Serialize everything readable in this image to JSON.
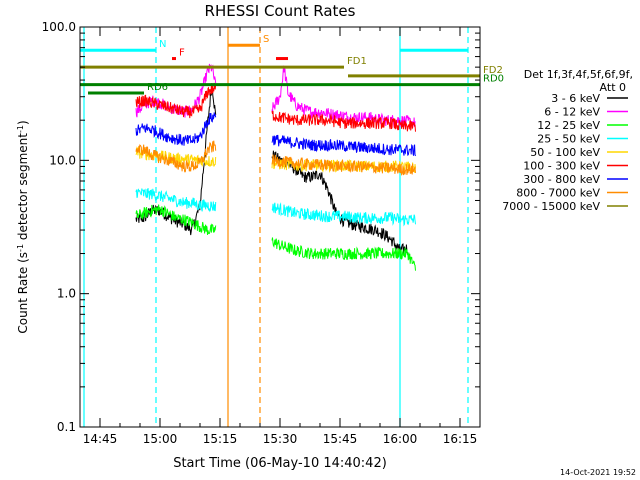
{
  "chart_data": {
    "type": "line",
    "title": "RHESSI Count Rates",
    "xlabel": "Start Time (06-May-10 14:40:42)",
    "ylabel": "Count Rate (s⁻¹ detector segment⁻¹)",
    "ylabel_main": "Count Rate (s",
    "ylabel_sup1": "-1",
    "ylabel_mid": " detector segment",
    "ylabel_sup2": "-1",
    "ylabel_end": ")",
    "yscale": "log",
    "xlim": [
      "14:40",
      "16:20"
    ],
    "ylim": [
      0.1,
      100.0
    ],
    "x_ticks": [
      "14:45",
      "15:00",
      "15:15",
      "15:30",
      "15:45",
      "16:00",
      "16:15"
    ],
    "y_ticks": [
      "0.1",
      "1.0",
      "10.0",
      "100.0"
    ],
    "legend_header": [
      "Det 1f,3f,4f,5f,6f,9f,",
      "Att 0"
    ],
    "footer_date": "14-Oct-2021 19:52",
    "series": [
      {
        "name": "3 - 6 keV",
        "color": "#000000",
        "segments": [
          {
            "x": [
              "14:54",
              "14:56",
              "14:58",
              "15:00",
              "15:02",
              "15:04",
              "15:06",
              "15:08",
              "15:10",
              "15:12",
              "15:13",
              "15:14"
            ],
            "y": [
              3.6,
              3.7,
              4.2,
              4.2,
              3.8,
              3.5,
              3.3,
              3.0,
              4.6,
              20.0,
              38.0,
              20.0
            ]
          },
          {
            "x": [
              "15:28",
              "15:30",
              "15:32",
              "15:34",
              "15:36",
              "15:38",
              "15:40",
              "15:42",
              "15:44",
              "15:46",
              "15:48",
              "15:50",
              "15:52",
              "15:54",
              "15:56",
              "15:58",
              "16:00",
              "16:02"
            ],
            "y": [
              11.0,
              10.0,
              9.5,
              8.5,
              7.5,
              7.5,
              8.0,
              6.0,
              4.0,
              3.5,
              3.3,
              3.2,
              3.1,
              3.0,
              2.8,
              2.5,
              2.1,
              2.2
            ]
          }
        ]
      },
      {
        "name": "6 - 12 keV",
        "color": "#ff00ff",
        "segments": [
          {
            "x": [
              "14:54",
              "14:56",
              "14:58",
              "15:00",
              "15:02",
              "15:04",
              "15:06",
              "15:08",
              "15:10",
              "15:12",
              "15:13",
              "15:14"
            ],
            "y": [
              23,
              26,
              28,
              27,
              25,
              24,
              23,
              24,
              30,
              47,
              50,
              35
            ]
          },
          {
            "x": [
              "15:28",
              "15:30",
              "15:31",
              "15:32",
              "15:34",
              "15:36",
              "15:38",
              "15:40",
              "15:44",
              "15:48",
              "15:52",
              "15:56",
              "16:00",
              "16:04"
            ],
            "y": [
              24,
              30,
              50,
              32,
              26,
              24,
              23,
              23,
              22,
              21,
              21,
              20,
              20,
              19
            ]
          }
        ]
      },
      {
        "name": "12 - 25 keV",
        "color": "#00ff00",
        "segments": [
          {
            "x": [
              "14:54",
              "14:56",
              "14:58",
              "15:00",
              "15:02",
              "15:04",
              "15:06",
              "15:08",
              "15:10",
              "15:12",
              "15:14"
            ],
            "y": [
              3.8,
              4.0,
              4.2,
              4.3,
              4.0,
              3.7,
              3.6,
              3.4,
              3.2,
              3.0,
              3.0
            ]
          },
          {
            "x": [
              "15:28",
              "15:30",
              "15:34",
              "15:38",
              "15:42",
              "15:46",
              "15:50",
              "15:54",
              "15:58",
              "16:00",
              "16:02",
              "16:04"
            ],
            "y": [
              2.5,
              2.3,
              2.1,
              2.0,
              2.0,
              2.0,
              2.0,
              2.0,
              2.0,
              2.0,
              2.0,
              1.5
            ]
          }
        ]
      },
      {
        "name": "25 - 50 keV",
        "color": "#00ffff",
        "segments": [
          {
            "x": [
              "14:54",
              "14:56",
              "14:58",
              "15:00",
              "15:02",
              "15:04",
              "15:06",
              "15:08",
              "15:10",
              "15:12",
              "15:14"
            ],
            "y": [
              5.8,
              5.6,
              5.6,
              5.4,
              5.2,
              5.0,
              4.8,
              4.8,
              4.6,
              4.6,
              4.5
            ]
          },
          {
            "x": [
              "15:28",
              "15:30",
              "15:34",
              "15:38",
              "15:42",
              "15:46",
              "15:50",
              "15:54",
              "15:58",
              "16:00",
              "16:02",
              "16:04"
            ],
            "y": [
              4.5,
              4.3,
              4.0,
              3.9,
              3.8,
              3.8,
              3.7,
              3.7,
              3.7,
              3.6,
              3.6,
              3.6
            ]
          }
        ]
      },
      {
        "name": "50 - 100 keV",
        "color": "#ffd700",
        "segments": [
          {
            "x": [
              "14:54",
              "14:58",
              "15:02",
              "15:06",
              "15:10",
              "15:14"
            ],
            "y": [
              11.5,
              11.0,
              10.5,
              10.2,
              10.0,
              9.8
            ]
          },
          {
            "x": [
              "15:28",
              "15:34",
              "15:40",
              "15:46",
              "15:52",
              "15:58",
              "16:04"
            ],
            "y": [
              9.5,
              9.2,
              9.2,
              9.1,
              9.0,
              9.0,
              8.8
            ]
          }
        ]
      },
      {
        "name": "100 - 300 keV",
        "color": "#ff0000",
        "segments": [
          {
            "x": [
              "14:54",
              "14:56",
              "14:58",
              "15:00",
              "15:02",
              "15:04",
              "15:06",
              "15:08",
              "15:10",
              "15:12",
              "15:14"
            ],
            "y": [
              27,
              28,
              27,
              26,
              25,
              24,
              23,
              23,
              24,
              33,
              35
            ]
          },
          {
            "x": [
              "15:28",
              "15:30",
              "15:34",
              "15:38",
              "15:42",
              "15:46",
              "15:50",
              "15:54",
              "15:58",
              "16:00",
              "16:04"
            ],
            "y": [
              22,
              21,
              20,
              20,
              20,
              19,
              19,
              19,
              19,
              18,
              18
            ]
          }
        ]
      },
      {
        "name": "300 - 800 keV",
        "color": "#0000ff",
        "segments": [
          {
            "x": [
              "14:54",
              "14:56",
              "14:58",
              "15:00",
              "15:02",
              "15:04",
              "15:06",
              "15:08",
              "15:10",
              "15:12",
              "15:14"
            ],
            "y": [
              16.5,
              17.5,
              17.0,
              16.0,
              15.0,
              14.5,
              14.0,
              14.0,
              15.0,
              20.0,
              22.0
            ]
          },
          {
            "x": [
              "15:28",
              "15:30",
              "15:34",
              "15:38",
              "15:42",
              "15:46",
              "15:50",
              "15:54",
              "15:58",
              "16:00",
              "16:04"
            ],
            "y": [
              14.5,
              14.0,
              13.5,
              13.0,
              13.0,
              12.8,
              12.5,
              12.3,
              12.0,
              12.0,
              11.8
            ]
          }
        ]
      },
      {
        "name": "800 - 7000 keV",
        "color": "#ff8c00",
        "segments": [
          {
            "x": [
              "14:54",
              "14:56",
              "14:58",
              "15:00",
              "15:02",
              "15:04",
              "15:06",
              "15:08",
              "15:10",
              "15:12",
              "15:14"
            ],
            "y": [
              12.0,
              12.0,
              11.0,
              10.5,
              10.0,
              9.5,
              9.0,
              9.0,
              9.5,
              12.0,
              13.0
            ]
          },
          {
            "x": [
              "15:28",
              "15:30",
              "15:34",
              "15:38",
              "15:42",
              "15:46",
              "15:50",
              "15:54",
              "15:58",
              "16:00",
              "16:04"
            ],
            "y": [
              10.0,
              9.8,
              9.5,
              9.3,
              9.2,
              9.0,
              9.0,
              8.8,
              8.7,
              8.6,
              8.5
            ]
          }
        ]
      },
      {
        "name": "7000 - 15000 keV",
        "color": "#808000",
        "segments": []
      }
    ],
    "bar_labels": [
      {
        "label": "N",
        "color": "#00ffff",
        "y": 67,
        "x0": "14:40",
        "x1": "14:59"
      },
      {
        "label": "",
        "color": "#00ffff",
        "y": 67,
        "x0": "16:00",
        "x1": "16:17"
      },
      {
        "label": "S",
        "color": "#ff8c00",
        "y": 73,
        "x0": "15:17",
        "x1": "15:25"
      },
      {
        "label": "F",
        "color": "#ff0000",
        "y": 58,
        "x0": "15:03",
        "x1": "15:04"
      },
      {
        "label": "",
        "color": "#ff0000",
        "y": 58,
        "x0": "15:29",
        "x1": "15:32"
      },
      {
        "label": "FD1",
        "color": "#808000",
        "y": 50,
        "x0": "14:40",
        "x1": "15:46"
      },
      {
        "label": "FD2",
        "color": "#808000",
        "y": 43,
        "x0": "15:47",
        "x1": "16:20"
      },
      {
        "label": "RD0",
        "color": "#008000",
        "y": 37,
        "x0": "14:40",
        "x1": "16:20"
      },
      {
        "label": "RD6",
        "color": "#008000",
        "y": 32,
        "x0": "14:42",
        "x1": "14:56"
      }
    ],
    "vertical_lines": [
      {
        "x": "14:41",
        "color": "#00ffff",
        "style": "solid"
      },
      {
        "x": "14:59",
        "color": "#00ffff",
        "style": "dashed"
      },
      {
        "x": "15:17",
        "color": "#ff8c00",
        "style": "solid"
      },
      {
        "x": "15:25",
        "color": "#ff8c00",
        "style": "dashed"
      },
      {
        "x": "16:00",
        "color": "#00ffff",
        "style": "solid"
      },
      {
        "x": "16:17",
        "color": "#00ffff",
        "style": "dashed"
      }
    ]
  }
}
